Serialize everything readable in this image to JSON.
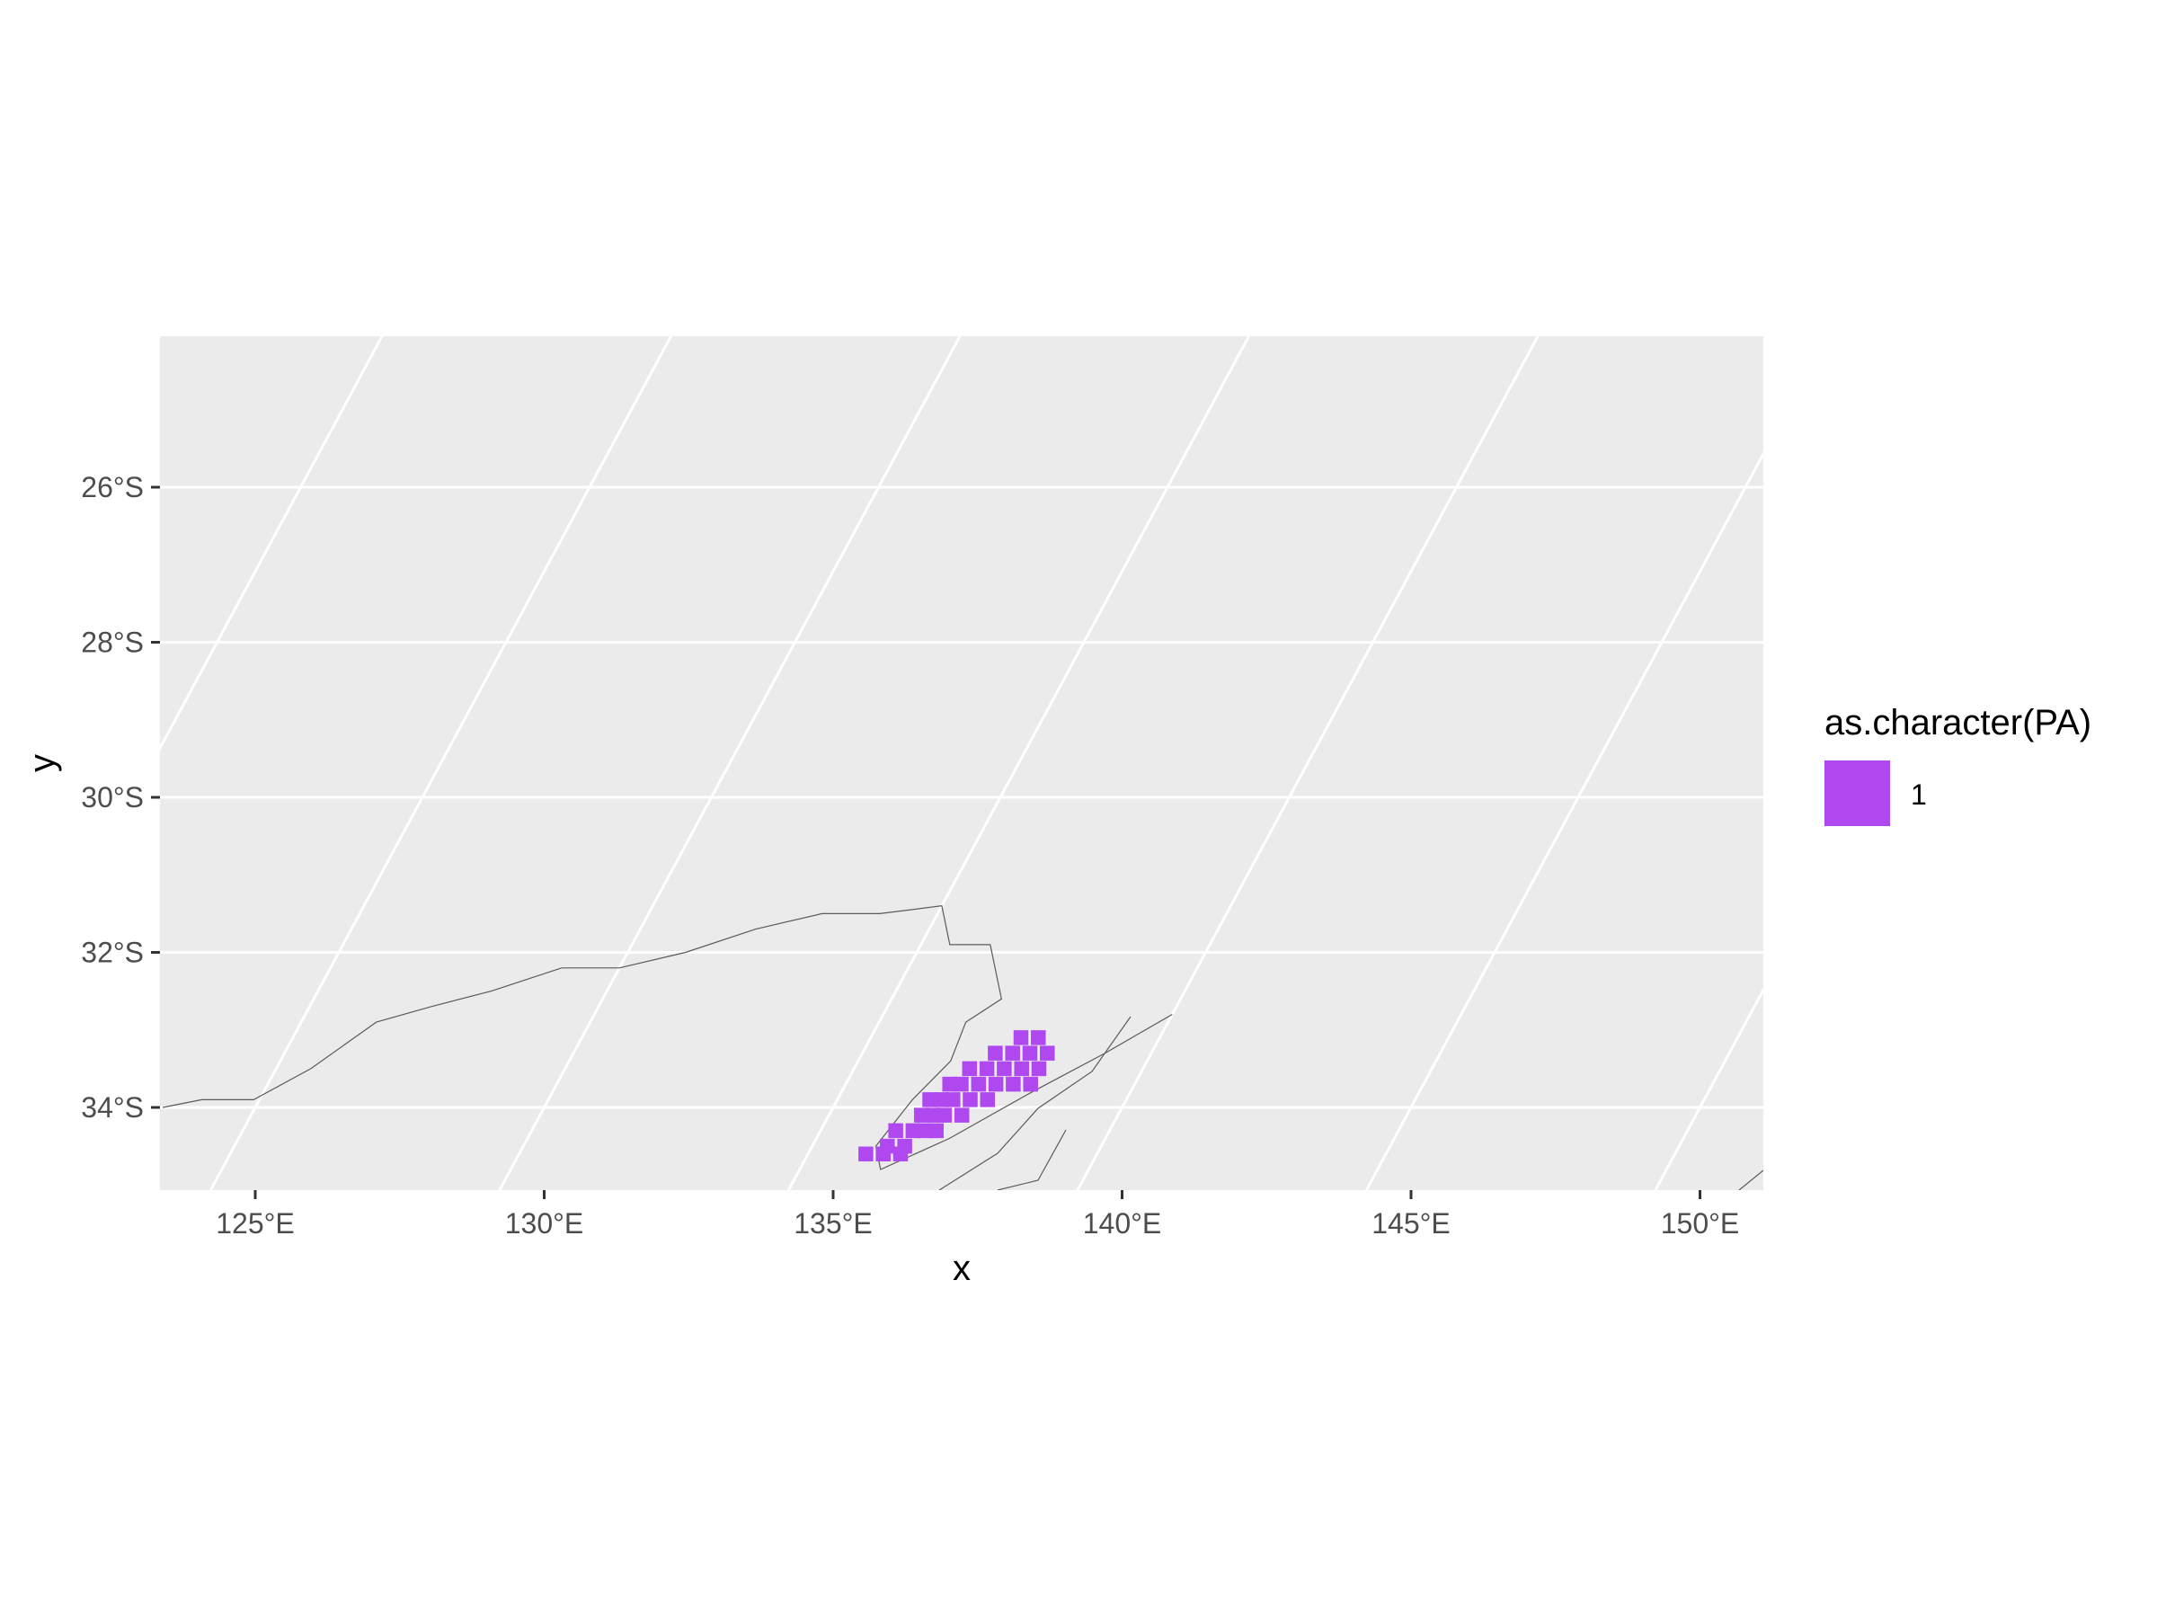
{
  "chart_data": {
    "type": "map",
    "axes": {
      "xlabel": "x",
      "ylabel": "y",
      "x_ticks": [
        "125°E",
        "130°E",
        "135°E",
        "140°E",
        "145°E",
        "150°E"
      ],
      "y_ticks": [
        "26°S",
        "28°S",
        "30°S",
        "32°S",
        "34°S"
      ],
      "x_tick_values": [
        125,
        130,
        135,
        140,
        145,
        150
      ],
      "y_tick_values": [
        -26,
        -28,
        -30,
        -32,
        -34
      ]
    },
    "grid": true,
    "legend": {
      "title": "as.character(PA)",
      "position": "right",
      "entries": [
        {
          "label": "1",
          "color": "#B048F0"
        }
      ]
    },
    "colors": {
      "panel_background": "#EBEBEB",
      "grid_line": "#FFFFFF",
      "coastline": "#5A5A5A",
      "presence": "#B048F0"
    },
    "coastline_approx_lonlat": [
      [
        123.4,
        -34.0
      ],
      [
        124.0,
        -33.9
      ],
      [
        124.9,
        -33.9
      ],
      [
        125.6,
        -33.5
      ],
      [
        126.3,
        -32.9
      ],
      [
        127.1,
        -32.7
      ],
      [
        128.0,
        -32.5
      ],
      [
        129.0,
        -32.2
      ],
      [
        130.0,
        -32.2
      ],
      [
        131.0,
        -32.0
      ],
      [
        132.0,
        -31.7
      ],
      [
        133.0,
        -31.5
      ],
      [
        134.0,
        -31.5
      ],
      [
        135.0,
        -31.4
      ],
      [
        135.5,
        -31.9
      ],
      [
        136.2,
        -31.9
      ],
      [
        136.9,
        -32.6
      ],
      [
        136.5,
        -32.9
      ],
      [
        136.6,
        -33.4
      ],
      [
        136.3,
        -33.9
      ],
      [
        136.1,
        -34.5
      ],
      [
        136.4,
        -34.8
      ],
      [
        137.3,
        -34.4
      ],
      [
        138.3,
        -33.8
      ],
      [
        139.2,
        -33.3
      ],
      [
        140.0,
        -32.8
      ]
    ],
    "presence_cells_lonlat": [
      [
        137.6,
        -33.1
      ],
      [
        137.9,
        -33.1
      ],
      [
        137.3,
        -33.3
      ],
      [
        137.6,
        -33.3
      ],
      [
        137.9,
        -33.3
      ],
      [
        138.2,
        -33.3
      ],
      [
        137.0,
        -33.5
      ],
      [
        137.3,
        -33.5
      ],
      [
        137.6,
        -33.5
      ],
      [
        137.9,
        -33.5
      ],
      [
        138.2,
        -33.5
      ],
      [
        136.8,
        -33.7
      ],
      [
        137.0,
        -33.7
      ],
      [
        137.3,
        -33.7
      ],
      [
        137.6,
        -33.7
      ],
      [
        137.9,
        -33.7
      ],
      [
        138.2,
        -33.7
      ],
      [
        136.6,
        -33.9
      ],
      [
        136.8,
        -33.9
      ],
      [
        137.0,
        -33.9
      ],
      [
        137.3,
        -33.9
      ],
      [
        137.6,
        -33.9
      ],
      [
        136.6,
        -34.1
      ],
      [
        136.8,
        -34.1
      ],
      [
        137.0,
        -34.1
      ],
      [
        137.3,
        -34.1
      ],
      [
        136.3,
        -34.3
      ],
      [
        136.6,
        -34.3
      ],
      [
        136.8,
        -34.3
      ],
      [
        137.0,
        -34.3
      ],
      [
        136.3,
        -34.5
      ],
      [
        136.6,
        -34.5
      ],
      [
        136.0,
        -34.6
      ],
      [
        136.3,
        -34.6
      ],
      [
        136.6,
        -34.6
      ]
    ]
  }
}
